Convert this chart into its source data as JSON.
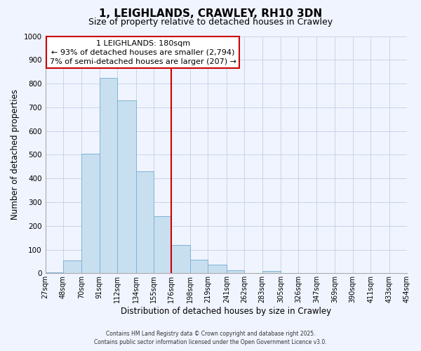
{
  "title": "1, LEIGHLANDS, CRAWLEY, RH10 3DN",
  "subtitle": "Size of property relative to detached houses in Crawley",
  "xlabel": "Distribution of detached houses by size in Crawley",
  "ylabel": "Number of detached properties",
  "bar_color": "#c8dff0",
  "bar_edge_color": "#7fb3d3",
  "bins": [
    27,
    48,
    70,
    91,
    112,
    134,
    155,
    176,
    198,
    219,
    241,
    262,
    283,
    305,
    326,
    347,
    369,
    390,
    411,
    433,
    454
  ],
  "bin_labels": [
    "27sqm",
    "48sqm",
    "70sqm",
    "91sqm",
    "112sqm",
    "134sqm",
    "155sqm",
    "176sqm",
    "198sqm",
    "219sqm",
    "241sqm",
    "262sqm",
    "283sqm",
    "305sqm",
    "326sqm",
    "347sqm",
    "369sqm",
    "390sqm",
    "411sqm",
    "433sqm",
    "454sqm"
  ],
  "counts": [
    5,
    55,
    505,
    825,
    730,
    430,
    240,
    120,
    57,
    35,
    12,
    0,
    10,
    0,
    0,
    0,
    0,
    0,
    0,
    0
  ],
  "vline_x": 176,
  "ylim": [
    0,
    1000
  ],
  "yticks": [
    0,
    100,
    200,
    300,
    400,
    500,
    600,
    700,
    800,
    900,
    1000
  ],
  "annotation_title": "1 LEIGHLANDS: 180sqm",
  "annotation_line1": "← 93% of detached houses are smaller (2,794)",
  "annotation_line2": "7% of semi-detached houses are larger (207) →",
  "footer1": "Contains HM Land Registry data © Crown copyright and database right 2025.",
  "footer2": "Contains public sector information licensed under the Open Government Licence v3.0.",
  "bg_color": "#f0f4ff",
  "grid_color": "#c8d4e8"
}
